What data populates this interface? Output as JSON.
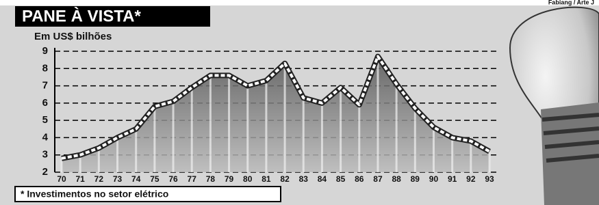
{
  "chart_data": {
    "type": "area",
    "title": "PANE À VISTA*",
    "credit": "Fabiang / Arte J",
    "y_label": "Em US$ bilhões",
    "footnote": "* Investimentos no setor elétrico",
    "categories": [
      "70",
      "71",
      "72",
      "73",
      "74",
      "75",
      "76",
      "77",
      "78",
      "79",
      "80",
      "81",
      "82",
      "83",
      "84",
      "85",
      "86",
      "87",
      "88",
      "89",
      "90",
      "91",
      "92",
      "93"
    ],
    "values": [
      2.8,
      3.0,
      3.4,
      4.0,
      4.5,
      5.8,
      6.1,
      6.9,
      7.6,
      7.6,
      7.0,
      7.3,
      8.3,
      6.3,
      6.0,
      6.9,
      5.9,
      8.7,
      7.1,
      5.7,
      4.6,
      4.0,
      3.8,
      3.2
    ],
    "color": "#222222",
    "ylim": [
      2,
      9
    ],
    "yticks": [
      2,
      3,
      4,
      5,
      6,
      7,
      8,
      9
    ],
    "grid": true
  }
}
